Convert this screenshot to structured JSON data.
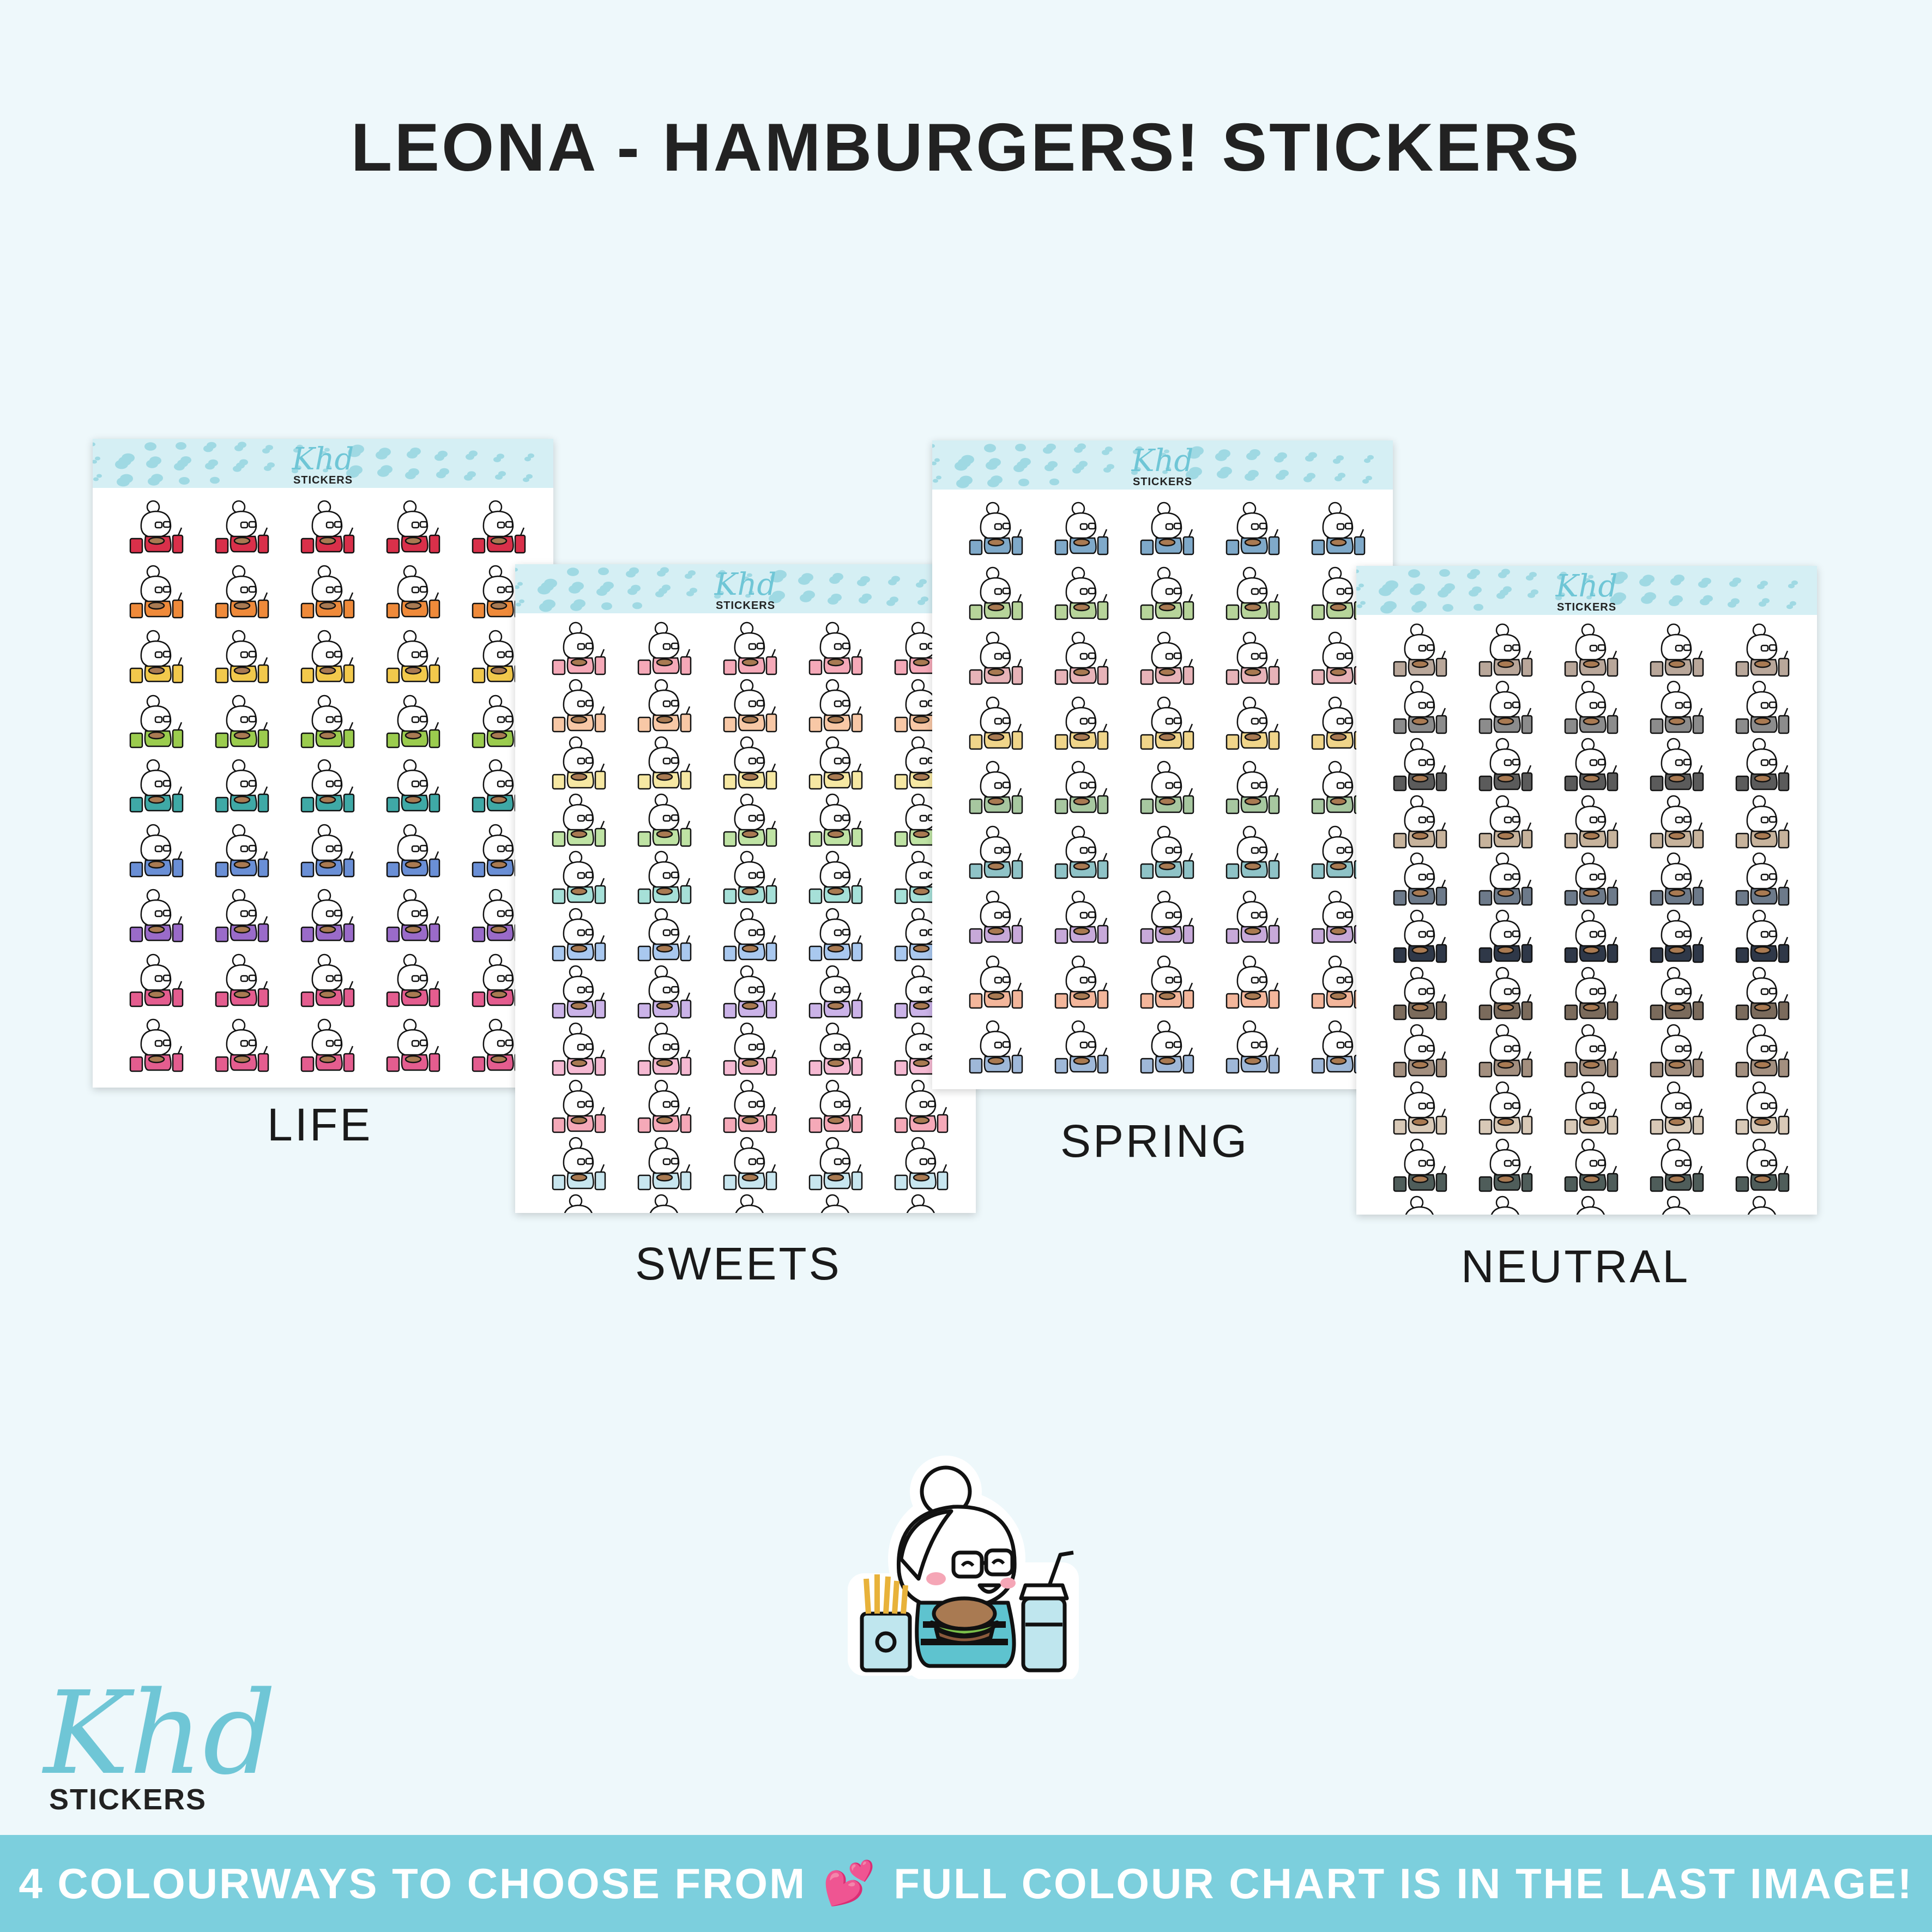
{
  "title": "LEONA - HAMBURGERS! STICKERS",
  "sheet_logo": {
    "script": "Khd",
    "word": "STICKERS"
  },
  "colourways": [
    {
      "label": "LIFE",
      "shirts": [
        "#d9304a",
        "#ef8a3a",
        "#f2c94c",
        "#9bcc4e",
        "#3fa9a6",
        "#6a8fd6",
        "#9a6bc9",
        "#e45d8f",
        "#e45d8f"
      ]
    },
    {
      "label": "SWEETS",
      "shirts": [
        "#f5a9b8",
        "#f8c8a6",
        "#f6e8a3",
        "#bfe3a4",
        "#a6e0d8",
        "#a9c8ef",
        "#cbb3e8",
        "#f5b9d2",
        "#f5a9b8",
        "#c8e6ef",
        "#fcd9b8"
      ]
    },
    {
      "label": "SPRING",
      "shirts": [
        "#7fa9c9",
        "#b7d49a",
        "#e7b3b8",
        "#f0d58a",
        "#a7c7a0",
        "#8fc3c7",
        "#c7a9d9",
        "#f3b69b",
        "#9fb8d8"
      ]
    },
    {
      "label": "NEUTRAL",
      "shirts": [
        "#b9a79a",
        "#8c8c8c",
        "#5b5b5b",
        "#c7b39c",
        "#6d7a8a",
        "#2f3848",
        "#7b6b5c",
        "#a38f7f",
        "#d8c9b7",
        "#4f5d5a",
        "#e0a9a3"
      ]
    }
  ],
  "brand": {
    "script": "Khd",
    "word": "STICKERS"
  },
  "banner": {
    "left": "4 COLOURWAYS TO CHOOSE FROM",
    "heart": "💕",
    "right": "FULL COLOUR CHART IS IN THE LAST IMAGE!"
  }
}
